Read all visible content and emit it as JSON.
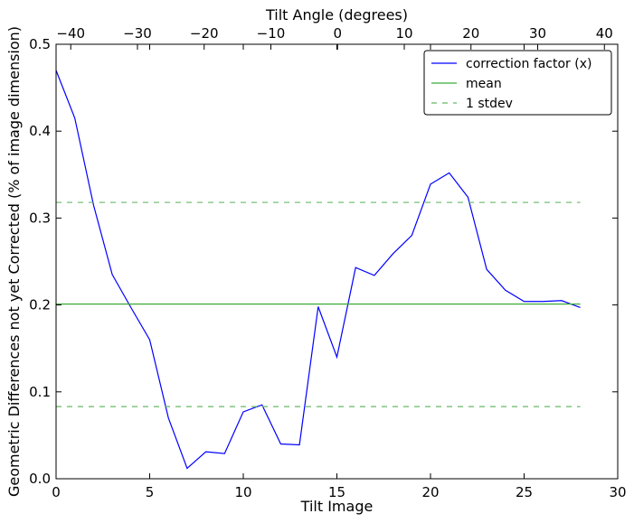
{
  "chart_data": {
    "type": "line",
    "xlabel": "Tilt Image",
    "ylabel": "Geometric Differences not yet Corrected (% of image dimension)",
    "x2label": "Tilt Angle (degrees)",
    "xlim": [
      0,
      30
    ],
    "ylim": [
      0,
      0.5
    ],
    "x2lim": [
      -42.2,
      42.0
    ],
    "xticks": [
      0,
      5,
      10,
      15,
      20,
      25,
      30
    ],
    "xtick_labels": [
      "0",
      "5",
      "10",
      "15",
      "20",
      "25",
      "30"
    ],
    "yticks": [
      0.0,
      0.1,
      0.2,
      0.3,
      0.4,
      0.5
    ],
    "ytick_labels": [
      "0.0",
      "0.1",
      "0.2",
      "0.3",
      "0.4",
      "0.5"
    ],
    "x2ticks": [
      -40,
      -30,
      -20,
      -10,
      0,
      10,
      20,
      30,
      40
    ],
    "x2tick_labels": [
      "−40",
      "−30",
      "−20",
      "−10",
      "0",
      "10",
      "20",
      "30",
      "40"
    ],
    "grid": false,
    "legend_position": "top-right",
    "series": [
      {
        "name": "correction factor (x)",
        "color": "#0000ff",
        "style": "solid",
        "x": [
          0,
          1,
          2,
          3,
          4,
          5,
          6,
          7,
          8,
          9,
          10,
          11,
          12,
          13,
          14,
          15,
          16,
          17,
          18,
          19,
          20,
          21,
          22,
          23,
          24,
          25,
          26,
          27,
          28
        ],
        "y": [
          0.47,
          0.415,
          0.315,
          0.235,
          0.197,
          0.16,
          0.07,
          0.012,
          0.031,
          0.029,
          0.077,
          0.085,
          0.04,
          0.039,
          0.198,
          0.14,
          0.243,
          0.234,
          0.259,
          0.28,
          0.339,
          0.352,
          0.324,
          0.241,
          0.217,
          0.204,
          0.204,
          0.205,
          0.197
        ]
      },
      {
        "name": "mean",
        "color": "#3aaa3a",
        "style": "solid",
        "x": [
          0,
          28
        ],
        "y": [
          0.201,
          0.201
        ]
      },
      {
        "name": "1 stdev",
        "color": "#66b866",
        "style": "dashed",
        "x": [
          0,
          28
        ],
        "y": [
          0.318,
          0.318
        ]
      },
      {
        "name": "",
        "color": "#66b866",
        "style": "dashed",
        "x": [
          0,
          28
        ],
        "y": [
          0.083,
          0.083
        ]
      }
    ],
    "legend": [
      "correction factor (x)",
      "mean",
      "1 stdev"
    ]
  }
}
